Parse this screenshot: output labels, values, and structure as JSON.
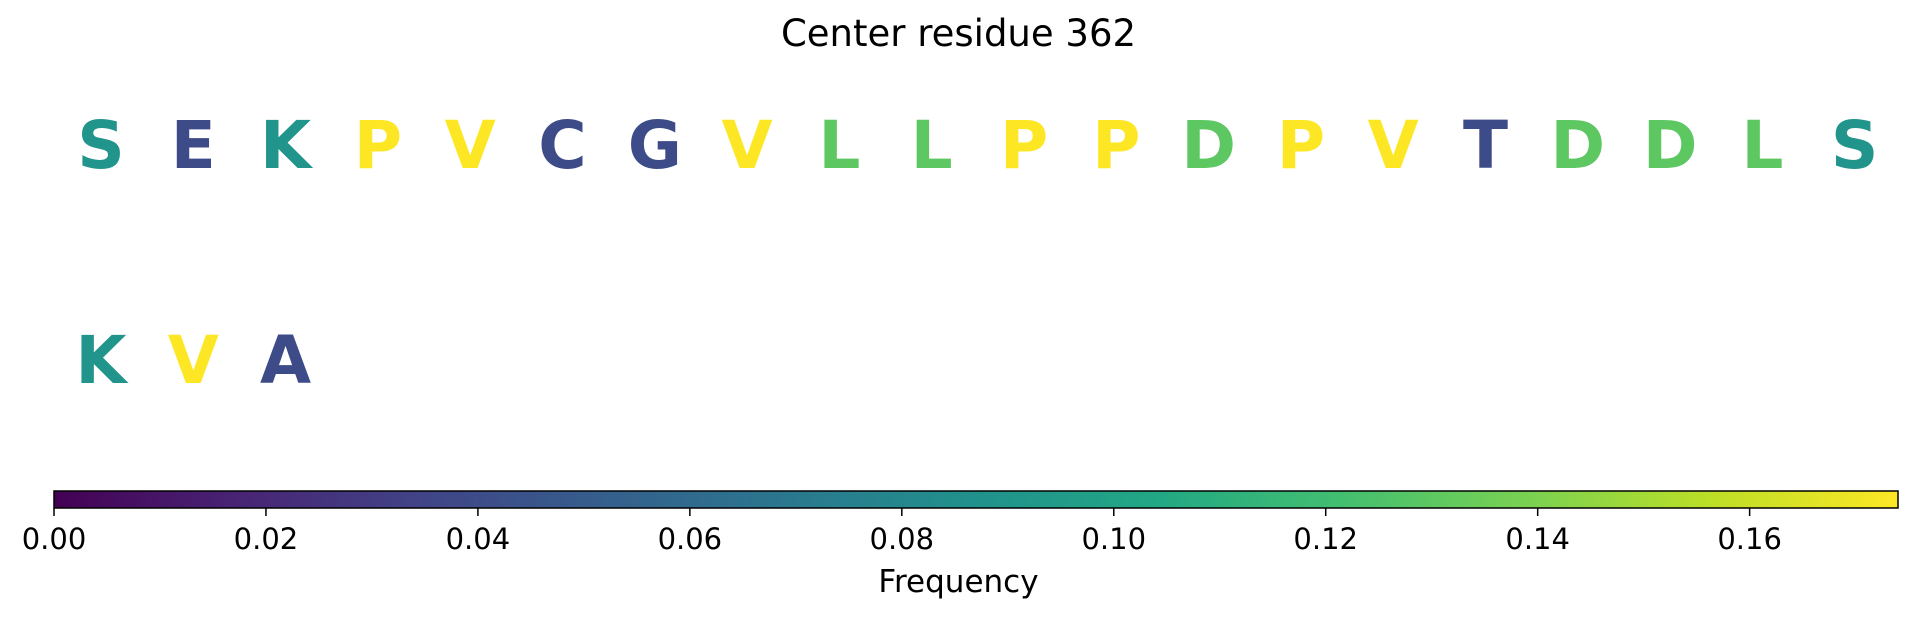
{
  "chart_data": {
    "type": "sequence-logo-colorbar",
    "title": "Center residue 362",
    "rows": [
      [
        {
          "letter": "S",
          "frequency": 0.09
        },
        {
          "letter": "E",
          "frequency": 0.04
        },
        {
          "letter": "K",
          "frequency": 0.09
        },
        {
          "letter": "P",
          "frequency": 0.174
        },
        {
          "letter": "V",
          "frequency": 0.174
        },
        {
          "letter": "C",
          "frequency": 0.04
        },
        {
          "letter": "G",
          "frequency": 0.04
        },
        {
          "letter": "V",
          "frequency": 0.174
        },
        {
          "letter": "L",
          "frequency": 0.13
        },
        {
          "letter": "L",
          "frequency": 0.13
        },
        {
          "letter": "P",
          "frequency": 0.174
        },
        {
          "letter": "P",
          "frequency": 0.174
        },
        {
          "letter": "D",
          "frequency": 0.13
        },
        {
          "letter": "P",
          "frequency": 0.174
        },
        {
          "letter": "V",
          "frequency": 0.174
        },
        {
          "letter": "T",
          "frequency": 0.04
        },
        {
          "letter": "D",
          "frequency": 0.13
        },
        {
          "letter": "D",
          "frequency": 0.13
        },
        {
          "letter": "L",
          "frequency": 0.13
        },
        {
          "letter": "S",
          "frequency": 0.09
        }
      ],
      [
        {
          "letter": "K",
          "frequency": 0.09
        },
        {
          "letter": "V",
          "frequency": 0.174
        },
        {
          "letter": "A",
          "frequency": 0.04
        }
      ]
    ],
    "colorbar": {
      "colormap": "viridis",
      "range": [
        0,
        0.174
      ],
      "ticks": [
        0.0,
        0.02,
        0.04,
        0.06,
        0.08,
        0.1,
        0.12,
        0.14,
        0.16
      ],
      "tick_labels": [
        "0.00",
        "0.02",
        "0.04",
        "0.06",
        "0.08",
        "0.10",
        "0.12",
        "0.14",
        "0.16"
      ],
      "label": "Frequency"
    }
  }
}
